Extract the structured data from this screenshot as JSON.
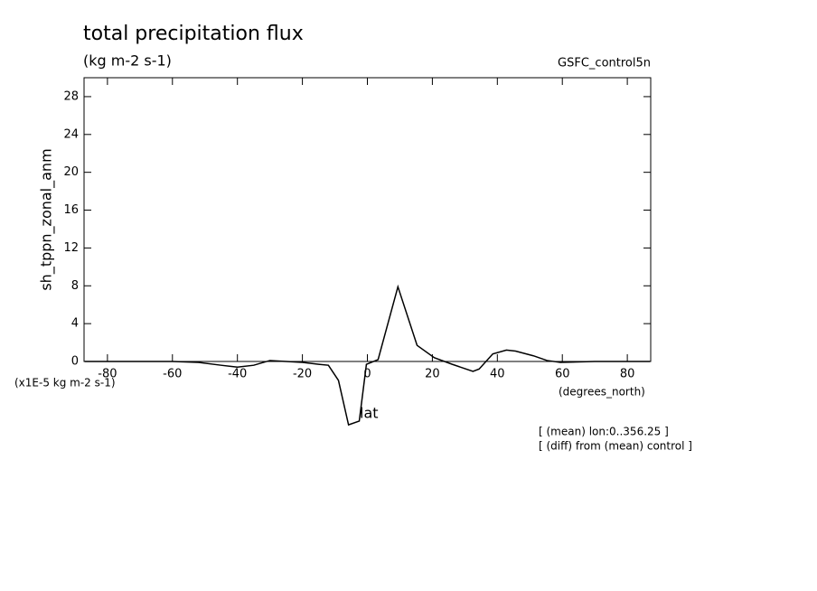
{
  "chart_data": {
    "type": "line",
    "title": "total precipitation flux",
    "subtitle": "(kg m-2 s-1)",
    "dataset": "GSFC_control5n",
    "y_label": "sh_tppn_zonal_anm",
    "y_units": "(x1E-5 kg m-2 s-1)",
    "x_label": "lat",
    "x_units": "(degrees_north)",
    "notes": [
      "[ (mean) lon:0..356.25 ]",
      "[ (diff) from (mean) control ]"
    ],
    "xlim": [
      -87.2,
      87.2
    ],
    "ylim": [
      0,
      30
    ],
    "xticks": [
      -80,
      -60,
      -40,
      -20,
      0,
      20,
      40,
      60,
      80
    ],
    "yticks": [
      0,
      4,
      8,
      12,
      16,
      20,
      24,
      28
    ],
    "color": "#000000",
    "x": [
      -87,
      -70,
      -60,
      -52,
      -45,
      -40,
      -35,
      -30,
      -25,
      -20,
      -15,
      -12,
      -8.9,
      -5.8,
      -2.5,
      -0.3,
      3.3,
      9.4,
      15.3,
      20.6,
      26.1,
      32.5,
      34.4,
      38.6,
      42.8,
      45.6,
      51.1,
      55.3,
      59.4,
      70,
      87
    ],
    "values": [
      0,
      0,
      0,
      -0.1,
      -0.4,
      -0.6,
      -0.4,
      0.1,
      0,
      -0.1,
      -0.3,
      -0.4,
      -2.0,
      -6.7,
      -6.3,
      -0.3,
      0.2,
      7.9,
      1.7,
      0.4,
      -0.3,
      -1.05,
      -0.8,
      0.8,
      1.2,
      1.1,
      0.6,
      0.1,
      -0.1,
      0,
      0
    ]
  }
}
